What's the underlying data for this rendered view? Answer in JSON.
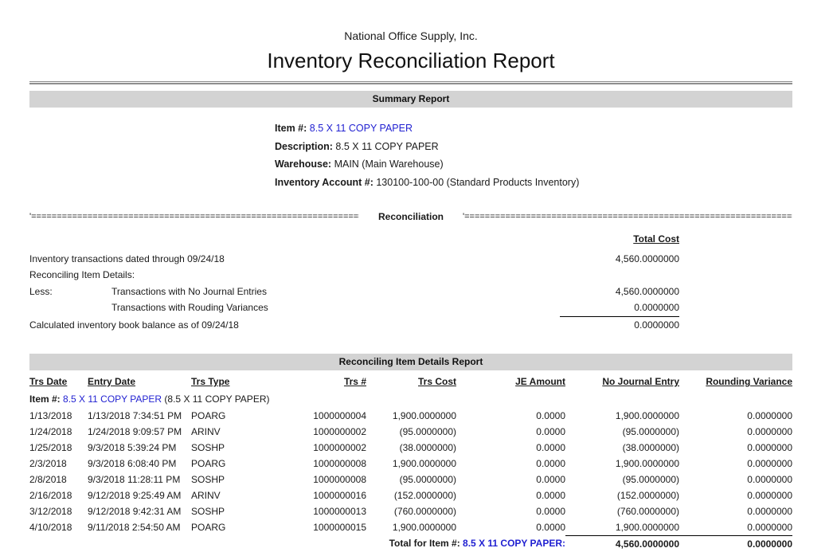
{
  "header": {
    "company": "National Office Supply, Inc.",
    "title": "Inventory Reconciliation Report"
  },
  "summary": {
    "bar_title": "Summary Report",
    "fields": [
      {
        "label": "Item #:",
        "value": "8.5 X 11 COPY PAPER"
      },
      {
        "label": "Description:",
        "value": "8.5 X 11 COPY PAPER"
      },
      {
        "label": "Warehouse:",
        "value": "MAIN (Main Warehouse)"
      },
      {
        "label": "Inventory Account #:",
        "value": "130100-100-00 (Standard Products Inventory)"
      }
    ]
  },
  "reconciliation": {
    "divider_left": "'========================================================================================",
    "divider_label": "Reconciliation",
    "divider_right": "'========================================================================================",
    "total_cost_header": "Total Cost",
    "rows": [
      {
        "prefix": "",
        "label": "Inventory transactions dated through 09/24/18",
        "value": "4,560.0000000"
      },
      {
        "prefix": "",
        "label": "Reconciling Item Details:",
        "value": ""
      },
      {
        "prefix": "Less:",
        "label": "Transactions with No Journal Entries",
        "value": "4,560.0000000"
      },
      {
        "prefix": "",
        "label": "Transactions with Rouding Variances",
        "value": "0.0000000"
      },
      {
        "prefix": "",
        "label": "Calculated inventory book balance as of 09/24/18",
        "value": "0.0000000"
      }
    ]
  },
  "details": {
    "bar_title": "Reconciling Item Details Report",
    "columns": [
      "Trs Date",
      "Entry Date",
      "Trs Type",
      "Trs #",
      "Trs Cost",
      "JE Amount",
      "No Journal Entry",
      "Rounding Variance"
    ],
    "item_label": "Item #:",
    "item_value": "8.5 X 11 COPY PAPER",
    "item_suffix": " (8.5 X 11 COPY PAPER)",
    "rows": [
      [
        "1/13/2018",
        "1/13/2018 7:34:51 PM",
        "POARG",
        "1000000004",
        "1,900.0000000",
        "0.0000",
        "1,900.0000000",
        "0.0000000"
      ],
      [
        "1/24/2018",
        "1/24/2018 9:09:57 PM",
        "ARINV",
        "1000000002",
        "(95.0000000)",
        "0.0000",
        "(95.0000000)",
        "0.0000000"
      ],
      [
        "1/25/2018",
        "9/3/2018 5:39:24 PM",
        "SOSHP",
        "1000000002",
        "(38.0000000)",
        "0.0000",
        "(38.0000000)",
        "0.0000000"
      ],
      [
        "2/3/2018",
        "9/3/2018 6:08:40 PM",
        "POARG",
        "1000000008",
        "1,900.0000000",
        "0.0000",
        "1,900.0000000",
        "0.0000000"
      ],
      [
        "2/8/2018",
        "9/3/2018 11:28:11 PM",
        "SOSHP",
        "1000000008",
        "(95.0000000)",
        "0.0000",
        "(95.0000000)",
        "0.0000000"
      ],
      [
        "2/16/2018",
        "9/12/2018 9:25:49 AM",
        "ARINV",
        "1000000016",
        "(152.0000000)",
        "0.0000",
        "(152.0000000)",
        "0.0000000"
      ],
      [
        "3/12/2018",
        "9/12/2018 9:42:31 AM",
        "SOSHP",
        "1000000013",
        "(760.0000000)",
        "0.0000",
        "(760.0000000)",
        "0.0000000"
      ],
      [
        "4/10/2018",
        "9/11/2018 2:54:50 AM",
        "POARG",
        "1000000015",
        "1,900.0000000",
        "0.0000",
        "1,900.0000000",
        "0.0000000"
      ]
    ],
    "total": {
      "label": "Total for Item #:",
      "item": "8.5 X 11 COPY PAPER:",
      "no_journal_entry": "4,560.0000000",
      "rounding_variance": "0.0000000"
    }
  },
  "colors": {
    "link_blue": "#1f1fd1",
    "bar_gray": "#d3d3d3"
  }
}
